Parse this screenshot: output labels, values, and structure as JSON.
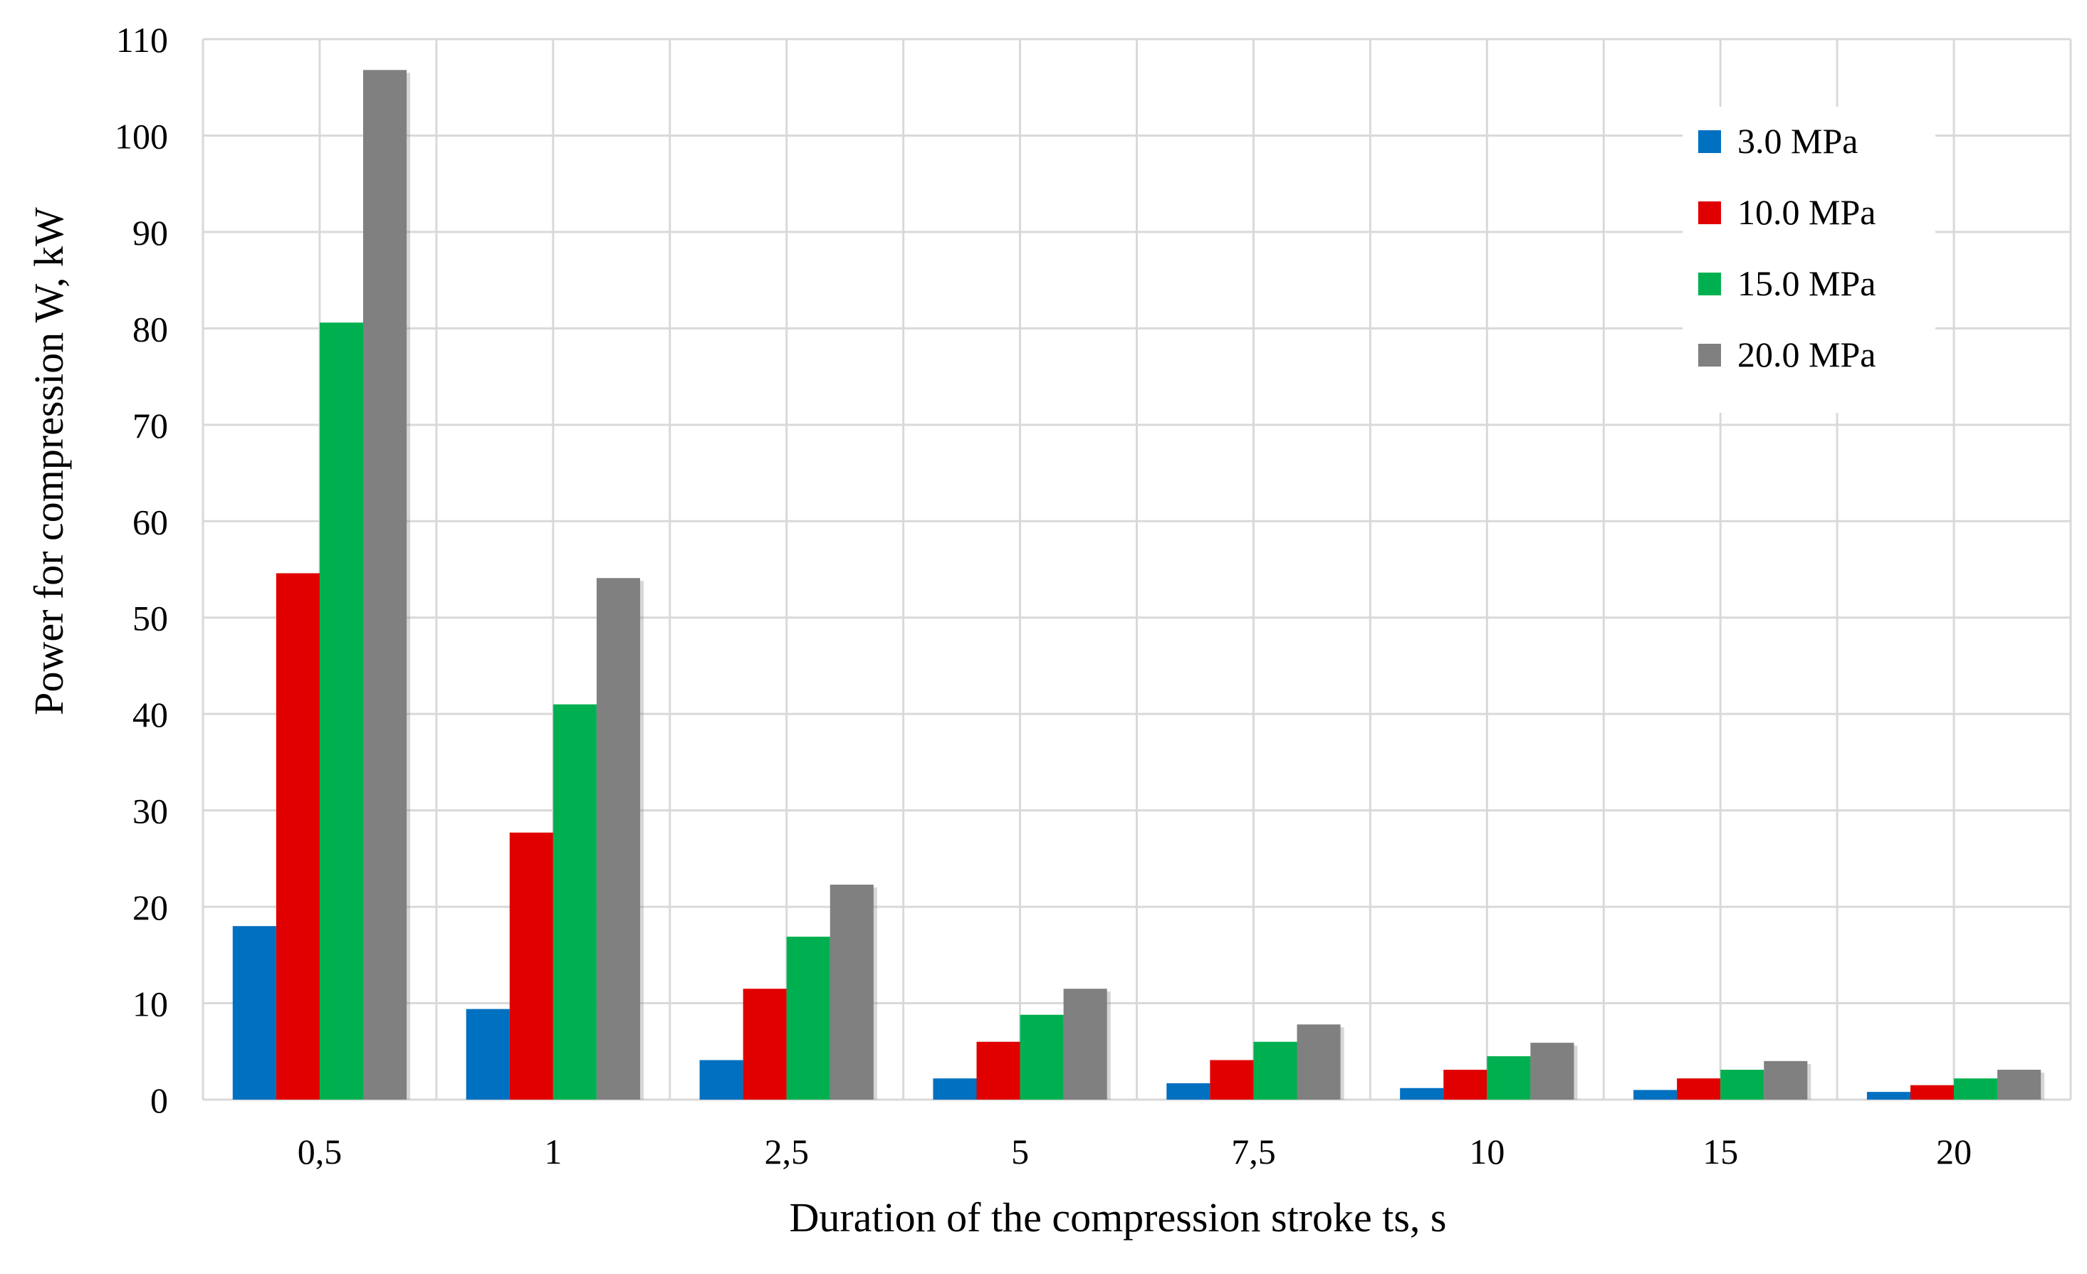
{
  "chart_data": {
    "type": "bar",
    "title": "",
    "xlabel": "Duration of the compression stroke ts, s",
    "ylabel": "Power for compression W, kW",
    "categories": [
      "0,5",
      "1",
      "2,5",
      "5",
      "7,5",
      "10",
      "15",
      "20"
    ],
    "ylim": [
      0,
      110
    ],
    "yticks": [
      0,
      10,
      20,
      30,
      40,
      50,
      60,
      70,
      80,
      90,
      100,
      110
    ],
    "grid": true,
    "legend_position": "top-right",
    "series": [
      {
        "name": "3.0 MPa",
        "color": "#0070c0",
        "values": [
          18.0,
          9.4,
          4.1,
          2.2,
          1.7,
          1.2,
          1.0,
          0.8
        ]
      },
      {
        "name": "10.0 MPa",
        "color": "#e00000",
        "values": [
          54.6,
          27.7,
          11.5,
          6.0,
          4.1,
          3.1,
          2.2,
          1.5
        ]
      },
      {
        "name": "15.0 MPa",
        "color": "#00b050",
        "values": [
          80.6,
          41.0,
          16.9,
          8.8,
          6.0,
          4.5,
          3.1,
          2.2
        ]
      },
      {
        "name": "20.0 MPa",
        "color": "#808080",
        "values": [
          106.8,
          54.1,
          22.3,
          11.5,
          7.8,
          5.9,
          4.0,
          3.1
        ]
      }
    ]
  }
}
